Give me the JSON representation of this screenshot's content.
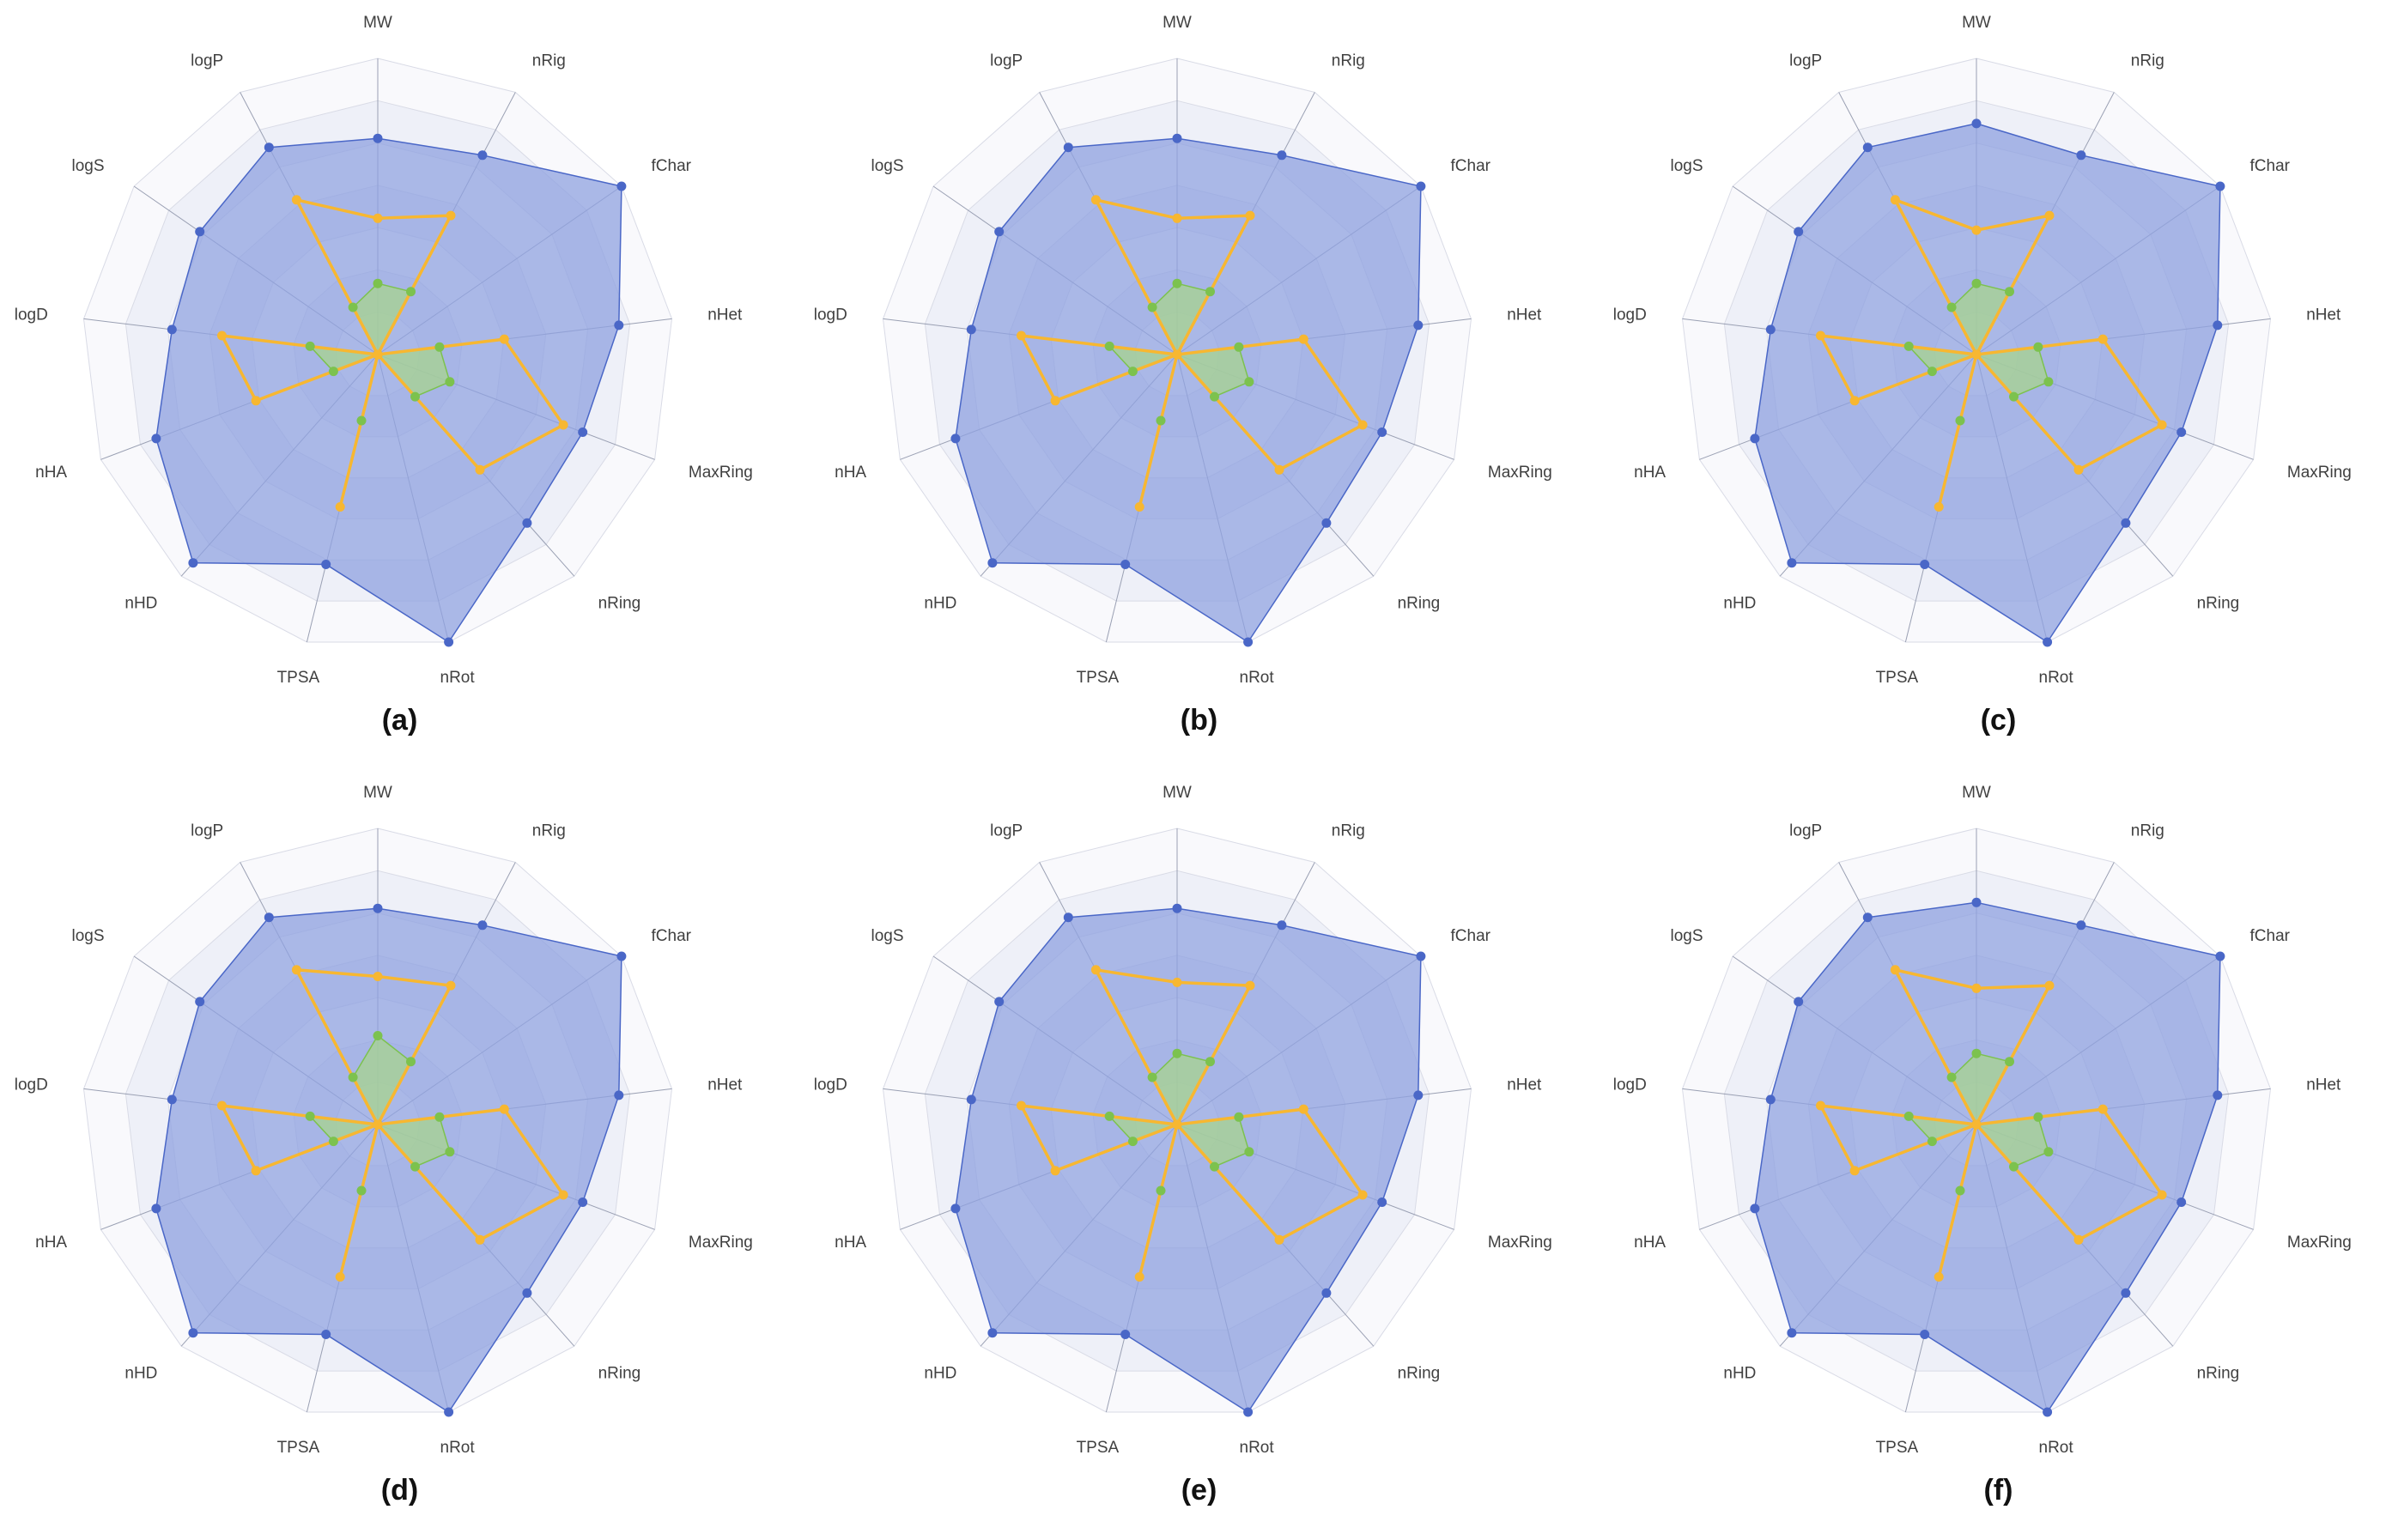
{
  "axes": [
    "MW",
    "nRig",
    "fChar",
    "nHet",
    "MaxRing",
    "nRing",
    "nRot",
    "TPSA",
    "nHD",
    "nHA",
    "logD",
    "logS",
    "logP"
  ],
  "colors": {
    "upper": "#4a67c7",
    "upper_fill": "#8fa2e0",
    "lower": "#7cc24e",
    "lower_fill": "#a7d48e",
    "compound": "#f7b731",
    "grid_line": "#d9dbe6",
    "spoke": "#9aa0b3",
    "band": "#eef0f8"
  },
  "chart_data": [
    {
      "type": "radar",
      "caption": "(a)",
      "series": [
        {
          "role": "upper",
          "values": [
            0.73,
            0.76,
            1.0,
            0.82,
            0.74,
            0.76,
            1.0,
            0.73,
            0.94,
            0.8,
            0.7,
            0.73,
            0.79
          ]
        },
        {
          "role": "lower",
          "values": [
            0.24,
            0.24,
            0.0,
            0.21,
            0.26,
            0.19,
            0.0,
            0.23,
            0.0,
            0.16,
            0.23,
            0.0,
            0.18
          ]
        },
        {
          "role": "compound",
          "values": [
            0.46,
            0.53,
            0.0,
            0.43,
            0.67,
            0.52,
            0.0,
            0.53,
            0.0,
            0.44,
            0.53,
            0.0,
            0.59
          ]
        }
      ]
    },
    {
      "type": "radar",
      "caption": "(b)",
      "series": [
        {
          "role": "upper",
          "values": [
            0.73,
            0.76,
            1.0,
            0.82,
            0.74,
            0.76,
            1.0,
            0.73,
            0.94,
            0.8,
            0.7,
            0.73,
            0.79
          ]
        },
        {
          "role": "lower",
          "values": [
            0.24,
            0.24,
            0.0,
            0.21,
            0.26,
            0.19,
            0.0,
            0.23,
            0.0,
            0.16,
            0.23,
            0.0,
            0.18
          ]
        },
        {
          "role": "compound",
          "values": [
            0.46,
            0.53,
            0.0,
            0.43,
            0.67,
            0.52,
            0.0,
            0.53,
            0.0,
            0.44,
            0.53,
            0.0,
            0.59
          ]
        }
      ]
    },
    {
      "type": "radar",
      "caption": "(c)",
      "series": [
        {
          "role": "upper",
          "values": [
            0.78,
            0.76,
            1.0,
            0.82,
            0.74,
            0.76,
            1.0,
            0.73,
            0.94,
            0.8,
            0.7,
            0.73,
            0.79
          ]
        },
        {
          "role": "lower",
          "values": [
            0.24,
            0.24,
            0.0,
            0.21,
            0.26,
            0.19,
            0.0,
            0.23,
            0.0,
            0.16,
            0.23,
            0.0,
            0.18
          ]
        },
        {
          "role": "compound",
          "values": [
            0.42,
            0.53,
            0.0,
            0.43,
            0.67,
            0.52,
            0.0,
            0.53,
            0.0,
            0.44,
            0.53,
            0.0,
            0.59
          ]
        }
      ]
    },
    {
      "type": "radar",
      "caption": "(d)",
      "series": [
        {
          "role": "upper",
          "values": [
            0.73,
            0.76,
            1.0,
            0.82,
            0.74,
            0.76,
            1.0,
            0.73,
            0.94,
            0.8,
            0.7,
            0.73,
            0.79
          ]
        },
        {
          "role": "lower",
          "values": [
            0.3,
            0.24,
            0.0,
            0.21,
            0.26,
            0.19,
            0.0,
            0.23,
            0.0,
            0.16,
            0.23,
            0.0,
            0.18
          ]
        },
        {
          "role": "compound",
          "values": [
            0.5,
            0.53,
            0.0,
            0.43,
            0.67,
            0.52,
            0.0,
            0.53,
            0.0,
            0.44,
            0.53,
            0.0,
            0.59
          ]
        }
      ]
    },
    {
      "type": "radar",
      "caption": "(e)",
      "series": [
        {
          "role": "upper",
          "values": [
            0.73,
            0.76,
            1.0,
            0.82,
            0.74,
            0.76,
            1.0,
            0.73,
            0.94,
            0.8,
            0.7,
            0.73,
            0.79
          ]
        },
        {
          "role": "lower",
          "values": [
            0.24,
            0.24,
            0.0,
            0.21,
            0.26,
            0.19,
            0.0,
            0.23,
            0.0,
            0.16,
            0.23,
            0.0,
            0.18
          ]
        },
        {
          "role": "compound",
          "values": [
            0.48,
            0.53,
            0.0,
            0.43,
            0.67,
            0.52,
            0.0,
            0.53,
            0.0,
            0.44,
            0.53,
            0.0,
            0.59
          ]
        }
      ]
    },
    {
      "type": "radar",
      "caption": "(f)",
      "series": [
        {
          "role": "upper",
          "values": [
            0.75,
            0.76,
            1.0,
            0.82,
            0.74,
            0.76,
            1.0,
            0.73,
            0.94,
            0.8,
            0.7,
            0.73,
            0.79
          ]
        },
        {
          "role": "lower",
          "values": [
            0.24,
            0.24,
            0.0,
            0.21,
            0.26,
            0.19,
            0.0,
            0.23,
            0.0,
            0.16,
            0.23,
            0.0,
            0.18
          ]
        },
        {
          "role": "compound",
          "values": [
            0.46,
            0.53,
            0.0,
            0.43,
            0.67,
            0.52,
            0.0,
            0.53,
            0.0,
            0.44,
            0.53,
            0.0,
            0.59
          ]
        }
      ]
    }
  ]
}
